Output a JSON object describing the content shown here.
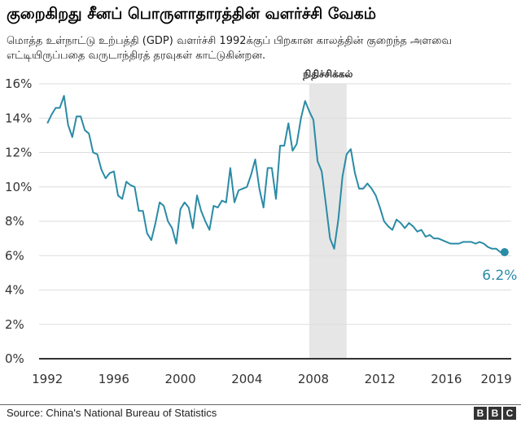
{
  "header": {
    "title": "குறைகிறது சீனப் பொருளாதாரத்தின் வளர்ச்சி வேகம்",
    "subtitle": "மொத்த உள்நாட்டு உற்பத்தி (GDP) வளர்ச்சி 1992க்குப் பிறகான காலத்தின் குறைந்த அளவை எட்டியிருப்பதை வருடாந்திரத் தரவுகள் காட்டுகின்றன."
  },
  "footer": {
    "source": "Source: China's National Bureau of Statistics",
    "logo_letters": [
      "B",
      "B",
      "C"
    ]
  },
  "colors": {
    "line": "#2a8ba6",
    "shade": "#e6e6e6",
    "grid": "#dddddd",
    "axis": "#333333"
  },
  "chart_data": {
    "type": "line",
    "title": "",
    "xlabel": "",
    "ylabel": "",
    "xlim": [
      1991.5,
      2019.9
    ],
    "ylim": [
      0,
      16
    ],
    "grid": true,
    "y_ticks": [
      "0%",
      "2%",
      "4%",
      "6%",
      "8%",
      "10%",
      "12%",
      "14%",
      "16%"
    ],
    "x_ticks": [
      "1992",
      "1996",
      "2000",
      "2004",
      "2008",
      "2012",
      "2016",
      "2019"
    ],
    "shaded_region": {
      "label": "நிதிச்சிக்கல்",
      "from": 2007.75,
      "to": 2010.0
    },
    "end_label": "6.2%",
    "series": [
      {
        "x": [
          1992.0,
          1992.25,
          1992.5,
          1992.75,
          1993.0,
          1993.25,
          1993.5,
          1993.75,
          1994.0,
          1994.25,
          1994.5,
          1994.75,
          1995.0,
          1995.25,
          1995.5,
          1995.75,
          1996.0,
          1996.25,
          1996.5,
          1996.75,
          1997.0,
          1997.25,
          1997.5,
          1997.75,
          1998.0,
          1998.25,
          1998.5,
          1998.75,
          1999.0,
          1999.25,
          1999.5,
          1999.75,
          2000.0,
          2000.25,
          2000.5,
          2000.75,
          2001.0,
          2001.25,
          2001.5,
          2001.75,
          2002.0,
          2002.25,
          2002.5,
          2002.75,
          2003.0,
          2003.25,
          2003.5,
          2003.75,
          2004.0,
          2004.25,
          2004.5,
          2004.75,
          2005.0,
          2005.25,
          2005.5,
          2005.75,
          2006.0,
          2006.25,
          2006.5,
          2006.75,
          2007.0,
          2007.25,
          2007.5,
          2007.75,
          2008.0,
          2008.25,
          2008.5,
          2008.75,
          2009.0,
          2009.25,
          2009.5,
          2009.75,
          2010.0,
          2010.25,
          2010.5,
          2010.75,
          2011.0,
          2011.25,
          2011.5,
          2011.75,
          2012.0,
          2012.25,
          2012.5,
          2012.75,
          2013.0,
          2013.25,
          2013.5,
          2013.75,
          2014.0,
          2014.25,
          2014.5,
          2014.75,
          2015.0,
          2015.25,
          2015.5,
          2015.75,
          2016.0,
          2016.25,
          2016.5,
          2016.75,
          2017.0,
          2017.25,
          2017.5,
          2017.75,
          2018.0,
          2018.25,
          2018.5,
          2018.75,
          2019.0,
          2019.25,
          2019.5
        ],
        "values": [
          13.7,
          14.2,
          14.6,
          14.6,
          15.3,
          13.6,
          12.9,
          14.1,
          14.1,
          13.3,
          13.1,
          12.0,
          11.9,
          11.0,
          10.5,
          10.8,
          10.9,
          9.5,
          9.3,
          10.3,
          10.1,
          10.0,
          8.6,
          8.6,
          7.3,
          6.9,
          7.9,
          9.1,
          8.9,
          8.0,
          7.6,
          6.7,
          8.7,
          9.1,
          8.8,
          7.6,
          9.5,
          8.6,
          8.0,
          7.5,
          8.9,
          8.8,
          9.2,
          9.1,
          11.1,
          9.1,
          9.8,
          9.9,
          10.0,
          10.7,
          11.6,
          9.9,
          8.8,
          11.1,
          11.1,
          9.3,
          12.4,
          12.4,
          13.7,
          12.1,
          12.5,
          14.0,
          15.0,
          14.4,
          13.9,
          11.5,
          10.9,
          9.0,
          7.0,
          6.4,
          8.1,
          10.6,
          11.9,
          12.2,
          10.8,
          9.9,
          9.9,
          10.2,
          9.9,
          9.5,
          8.8,
          8.0,
          7.7,
          7.5,
          8.1,
          7.9,
          7.6,
          7.9,
          7.7,
          7.4,
          7.5,
          7.1,
          7.2,
          7.0,
          7.0,
          6.9,
          6.8,
          6.7,
          6.7,
          6.7,
          6.8,
          6.8,
          6.8,
          6.7,
          6.8,
          6.7,
          6.5,
          6.4,
          6.4,
          6.2,
          6.2
        ]
      }
    ]
  }
}
